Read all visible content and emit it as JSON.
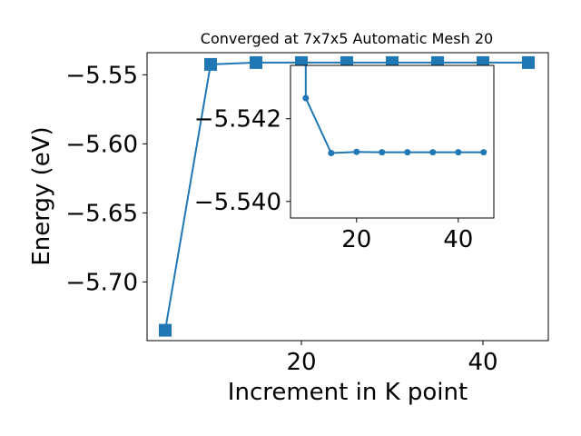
{
  "chart_data": [
    {
      "type": "line",
      "title": "Converged at 7x7x5 Automatic Mesh 20",
      "xlabel": "Increment in K point",
      "ylabel": "Energy (eV)",
      "xlim": [
        3.0,
        47.2
      ],
      "ylim": [
        -5.7425,
        -5.534
      ],
      "xticks": [
        20,
        40
      ],
      "yticks": [
        -5.55,
        -5.6,
        -5.65,
        -5.7
      ],
      "ytick_labels": [
        "−5.55",
        "−5.60",
        "−5.65",
        "−5.70"
      ],
      "xtick_labels": [
        "20",
        "40"
      ],
      "marker": "square",
      "color": "#1f77b4",
      "series": [
        {
          "x": [
            5,
            10,
            15,
            20,
            25,
            30,
            35,
            40,
            45
          ],
          "y": [
            -5.735,
            -5.5425,
            -5.54117,
            -5.5412,
            -5.5412,
            -5.5412,
            -5.5412,
            -5.5412,
            -5.5412
          ]
        }
      ]
    },
    {
      "type": "line",
      "title": "",
      "xlabel": "",
      "ylabel": "",
      "xlim": [
        7.0,
        47.0
      ],
      "ylim": [
        -5.54329,
        -5.5396
      ],
      "yinverted": true,
      "xticks": [
        20,
        40
      ],
      "xtick_labels": [
        "20",
        "40"
      ],
      "yticks": [
        -5.542,
        -5.54
      ],
      "ytick_labels": [
        "−5.542",
        "−5.540"
      ],
      "marker": "circle",
      "color": "#1f77b4",
      "series": [
        {
          "x": [
            10,
            15,
            20,
            25,
            30,
            35,
            40,
            45
          ],
          "y": [
            -5.5425,
            -5.54117,
            -5.5412,
            -5.54119,
            -5.54119,
            -5.54119,
            -5.54119,
            -5.54119
          ]
        }
      ]
    }
  ]
}
